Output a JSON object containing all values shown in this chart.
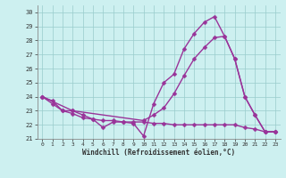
{
  "xlabel": "Windchill (Refroidissement éolien,°C)",
  "bg_color": "#cdf0f0",
  "grid_color": "#99cccc",
  "line_color": "#993399",
  "xlim": [
    -0.5,
    23.5
  ],
  "ylim": [
    21.0,
    30.5
  ],
  "yticks": [
    21,
    22,
    23,
    24,
    25,
    26,
    27,
    28,
    29,
    30
  ],
  "xticks": [
    0,
    1,
    2,
    3,
    4,
    5,
    6,
    7,
    8,
    9,
    10,
    11,
    12,
    13,
    14,
    15,
    16,
    17,
    18,
    19,
    20,
    21,
    22,
    23
  ],
  "line1_x": [
    0,
    1,
    2,
    3,
    4,
    5,
    6,
    7,
    8,
    9,
    10,
    11,
    12,
    13,
    14,
    15,
    16,
    17,
    18,
    19,
    20,
    21,
    22,
    23
  ],
  "line1_y": [
    24.0,
    23.7,
    23.0,
    22.8,
    22.5,
    22.4,
    21.8,
    22.2,
    22.2,
    22.2,
    22.2,
    22.1,
    22.1,
    22.0,
    22.0,
    22.0,
    22.0,
    22.0,
    22.0,
    22.0,
    21.8,
    21.7,
    21.5,
    21.5
  ],
  "line2_x": [
    0,
    1,
    2,
    3,
    4,
    5,
    6,
    7,
    8,
    9,
    10,
    11,
    12,
    13,
    14,
    15,
    16,
    17,
    18,
    19,
    20,
    21,
    22,
    23
  ],
  "line2_y": [
    24.0,
    23.5,
    23.0,
    23.0,
    22.7,
    22.4,
    22.3,
    22.3,
    22.2,
    22.1,
    21.2,
    23.5,
    25.0,
    25.6,
    27.4,
    28.5,
    29.3,
    29.7,
    28.3,
    26.7,
    24.0,
    22.7,
    21.5,
    21.5
  ],
  "line3_x": [
    0,
    3,
    10,
    11,
    12,
    13,
    14,
    15,
    16,
    17,
    18,
    19,
    20,
    21,
    22,
    23
  ],
  "line3_y": [
    24.0,
    23.0,
    22.3,
    22.7,
    23.2,
    24.2,
    25.5,
    26.7,
    27.5,
    28.2,
    28.3,
    26.7,
    24.0,
    22.7,
    21.5,
    21.5
  ],
  "markersize": 2.5,
  "linewidth": 1.0
}
